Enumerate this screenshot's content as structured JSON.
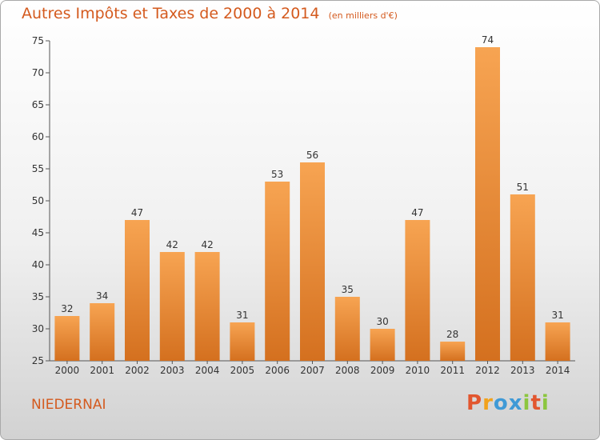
{
  "header": {
    "title": "Autres Impôts et Taxes de 2000 à 2014",
    "unit": "(en milliers d'€)"
  },
  "footer": {
    "commune": "NIEDERNAI",
    "brand": "Proxiti"
  },
  "colors": {
    "accent": "#d45a1e",
    "bar_top": "#f7a452",
    "bar_bottom": "#d4701f",
    "brand_letters": [
      "#e2562f",
      "#f2a21b",
      "#3f9ad6",
      "#3f9ad6",
      "#8cc63f",
      "#e2562f",
      "#8cc63f"
    ]
  },
  "chart_data": {
    "type": "bar",
    "categories": [
      "2000",
      "2001",
      "2002",
      "2003",
      "2004",
      "2005",
      "2006",
      "2007",
      "2008",
      "2009",
      "2010",
      "2011",
      "2012",
      "2013",
      "2014"
    ],
    "values": [
      32,
      34,
      47,
      42,
      42,
      31,
      53,
      56,
      35,
      30,
      47,
      28,
      74,
      51,
      31
    ],
    "data_labels": [
      "32",
      "34",
      "47",
      "42",
      "42",
      "31",
      "53",
      "56",
      "35",
      "30",
      "47",
      "28",
      "74",
      "51",
      "31"
    ],
    "title": "Autres Impôts et Taxes de 2000 à 2014",
    "ylim": [
      25,
      75
    ],
    "yticks": [
      25,
      30,
      35,
      40,
      45,
      50,
      55,
      60,
      65,
      70,
      75
    ],
    "ytick_labels": [
      "25",
      "30",
      "35",
      "40",
      "45",
      "50",
      "55",
      "60",
      "65",
      "70",
      "75"
    ],
    "grid": false,
    "legend": "none"
  }
}
